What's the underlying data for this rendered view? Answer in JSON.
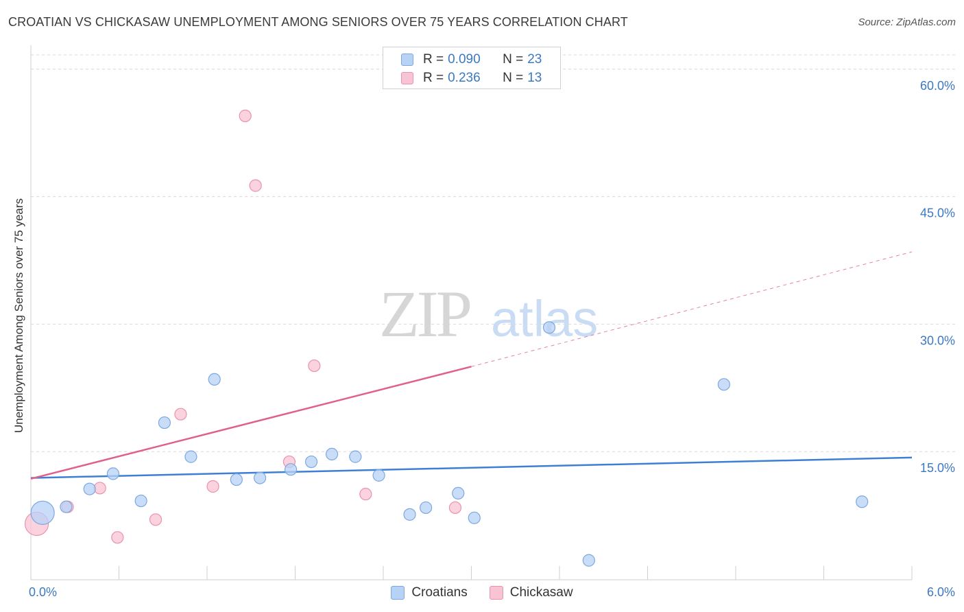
{
  "title": "CROATIAN VS CHICKASAW UNEMPLOYMENT AMONG SENIORS OVER 75 YEARS CORRELATION CHART",
  "source": "Source: ZipAtlas.com",
  "watermark": {
    "zip": "ZIP",
    "atlas": "atlas"
  },
  "legend_top": [
    {
      "r_label": "R =",
      "r_value": "0.090",
      "n_label": "N =",
      "n_value": "23"
    },
    {
      "r_label": "R =",
      "r_value": "0.236",
      "n_label": "N =",
      "n_value": "13"
    }
  ],
  "legend_bottom": [
    {
      "label": "Croatians"
    },
    {
      "label": "Chickasaw"
    }
  ],
  "colors": {
    "croatians_fill": "#b8d2f5",
    "croatians_stroke": "#7aa8e0",
    "croatians_line": "#3d7fd4",
    "chickasaw_fill": "#f8c4d4",
    "chickasaw_stroke": "#eb90ae",
    "chickasaw_line": "#e0608c",
    "tick_label": "#3b78c4",
    "grid": "#d8d8d8"
  },
  "chart_data": {
    "type": "scatter",
    "title": "CROATIAN VS CHICKASAW UNEMPLOYMENT AMONG SENIORS OVER 75 YEARS CORRELATION CHART",
    "xlabel": "",
    "ylabel": "Unemployment Among Seniors over 75 years",
    "xlim": [
      0,
      6
    ],
    "ylim": [
      0,
      62
    ],
    "x_tick_labels": [
      {
        "value": 0,
        "label": "0.0%"
      },
      {
        "value": 6,
        "label": "6.0%"
      }
    ],
    "y_ticks": [
      {
        "value": 15,
        "label": "15.0%"
      },
      {
        "value": 30,
        "label": "30.0%"
      },
      {
        "value": 45,
        "label": "45.0%"
      },
      {
        "value": 60,
        "label": "60.0%"
      }
    ],
    "x_minor_ticks": [
      0,
      0.6,
      1.2,
      1.8,
      2.4,
      3.0,
      3.6,
      4.2,
      4.8,
      5.4,
      6.0
    ],
    "grid": true,
    "legend_position": "top-center",
    "series": [
      {
        "name": "Croatians",
        "r": 0.09,
        "n": 23,
        "points": [
          {
            "x": 0.08,
            "y": 7.8,
            "size": "large"
          },
          {
            "x": 0.24,
            "y": 8.5
          },
          {
            "x": 0.4,
            "y": 10.6
          },
          {
            "x": 0.56,
            "y": 12.4
          },
          {
            "x": 0.75,
            "y": 9.2
          },
          {
            "x": 0.91,
            "y": 18.4
          },
          {
            "x": 1.09,
            "y": 14.4
          },
          {
            "x": 1.25,
            "y": 23.5
          },
          {
            "x": 1.4,
            "y": 11.7
          },
          {
            "x": 1.56,
            "y": 11.9
          },
          {
            "x": 1.77,
            "y": 12.9
          },
          {
            "x": 1.91,
            "y": 13.8
          },
          {
            "x": 2.05,
            "y": 14.7
          },
          {
            "x": 2.21,
            "y": 14.4
          },
          {
            "x": 2.37,
            "y": 12.2
          },
          {
            "x": 2.58,
            "y": 7.6
          },
          {
            "x": 2.69,
            "y": 8.4
          },
          {
            "x": 2.91,
            "y": 10.1
          },
          {
            "x": 3.02,
            "y": 7.2
          },
          {
            "x": 3.53,
            "y": 29.6
          },
          {
            "x": 3.8,
            "y": 2.2
          },
          {
            "x": 4.72,
            "y": 22.9
          },
          {
            "x": 5.66,
            "y": 9.1
          }
        ],
        "trend": {
          "x": [
            0,
            6
          ],
          "y": [
            11.9,
            14.3
          ]
        }
      },
      {
        "name": "Chickasaw",
        "r": 0.236,
        "n": 13,
        "points": [
          {
            "x": 0.04,
            "y": 6.5,
            "size": "large"
          },
          {
            "x": 0.25,
            "y": 8.5
          },
          {
            "x": 0.47,
            "y": 10.7
          },
          {
            "x": 0.59,
            "y": 4.9
          },
          {
            "x": 0.85,
            "y": 7.0
          },
          {
            "x": 1.02,
            "y": 19.4
          },
          {
            "x": 1.24,
            "y": 10.9
          },
          {
            "x": 1.46,
            "y": 54.5
          },
          {
            "x": 1.53,
            "y": 46.3
          },
          {
            "x": 1.76,
            "y": 13.8
          },
          {
            "x": 1.93,
            "y": 25.1
          },
          {
            "x": 2.28,
            "y": 10.0
          },
          {
            "x": 2.89,
            "y": 8.4
          }
        ],
        "trend": {
          "x": [
            0,
            3.0
          ],
          "y": [
            11.8,
            25.0
          ]
        },
        "trend_extension": {
          "x": [
            3.0,
            6.0
          ],
          "y": [
            25.0,
            38.5
          ]
        }
      }
    ]
  }
}
